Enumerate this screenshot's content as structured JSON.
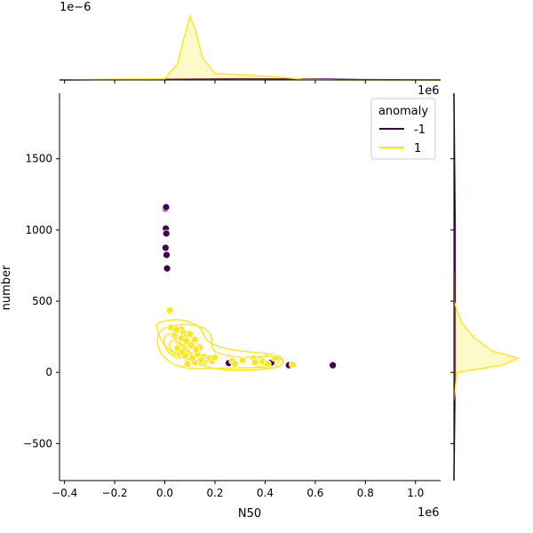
{
  "chart_data": {
    "type": "scatter",
    "title": "",
    "xlabel": "N50",
    "ylabel": "number",
    "x_offset_text": "1e6",
    "top_marginal_offset_text": "1e−6",
    "right_marginal_offset_text": "1e6",
    "xlim": [
      -0.42,
      1.1
    ],
    "ylim": [
      -760,
      1960
    ],
    "xticks": [
      -0.4,
      -0.2,
      0.0,
      0.2,
      0.4,
      0.6,
      0.8,
      1.0
    ],
    "xtick_labels": [
      "−0.4",
      "−0.2",
      "0.0",
      "0.2",
      "0.4",
      "0.6",
      "0.8",
      "1.0"
    ],
    "yticks": [
      -500,
      0,
      500,
      1000,
      1500
    ],
    "ytick_labels": [
      "−500",
      "0",
      "500",
      "1000",
      "1500"
    ],
    "grid": false,
    "legend": {
      "title": "anomaly",
      "placement": "upper right",
      "entries": [
        {
          "label": "-1",
          "color": "#440154"
        },
        {
          "label": "1",
          "color": "#fde725"
        }
      ]
    },
    "colors": {
      "anomaly_neg": "#440154",
      "anomaly_pos": "#fde725"
    },
    "series": [
      {
        "name": "-1",
        "color": "#440154",
        "x": [
          0.003,
          0.005,
          0.004,
          0.006,
          0.003,
          0.007,
          0.009,
          0.255,
          0.425,
          0.495,
          0.67
        ],
        "y": [
          1150,
          1160,
          1010,
          975,
          875,
          825,
          730,
          65,
          70,
          50,
          50
        ]
      },
      {
        "name": "1",
        "color": "#fde725",
        "x": [
          0.02,
          0.025,
          0.04,
          0.05,
          0.055,
          0.06,
          0.065,
          0.07,
          0.075,
          0.08,
          0.085,
          0.09,
          0.095,
          0.1,
          0.105,
          0.11,
          0.115,
          0.12,
          0.125,
          0.13,
          0.135,
          0.14,
          0.15,
          0.155,
          0.16,
          0.17,
          0.18,
          0.19,
          0.2,
          0.045,
          0.06,
          0.08,
          0.1,
          0.12,
          0.05,
          0.07,
          0.09,
          0.11,
          0.13,
          0.145,
          0.065,
          0.085,
          0.105,
          0.125,
          0.27,
          0.28,
          0.31,
          0.355,
          0.36,
          0.39,
          0.41,
          0.43,
          0.435,
          0.44,
          0.51
        ],
        "y": [
          435,
          315,
          260,
          230,
          210,
          195,
          305,
          180,
          275,
          160,
          250,
          140,
          205,
          270,
          120,
          185,
          105,
          230,
          150,
          95,
          125,
          175,
          85,
          110,
          75,
          90,
          100,
          80,
          105,
          300,
          130,
          115,
          90,
          70,
          170,
          145,
          60,
          100,
          130,
          85,
          240,
          220,
          190,
          160,
          80,
          60,
          85,
          100,
          70,
          75,
          60,
          115,
          105,
          100,
          55
        ]
      }
    ],
    "marginal_x_density": {
      "series": [
        {
          "name": "-1",
          "x": [
            -0.42,
            0.0,
            0.3,
            0.6,
            0.8,
            1.1
          ],
          "density": [
            0.0,
            0.01,
            0.02,
            0.015,
            0.005,
            0.0
          ]
        },
        {
          "name": "1",
          "x": [
            -0.42,
            0.0,
            0.05,
            0.08,
            0.1,
            0.12,
            0.15,
            0.2,
            0.3,
            0.4,
            0.45,
            0.55,
            0.7,
            1.1
          ],
          "density": [
            0.0,
            0.02,
            0.25,
            0.7,
            1.0,
            0.8,
            0.35,
            0.1,
            0.08,
            0.06,
            0.05,
            0.01,
            0.0,
            0.0
          ]
        }
      ]
    },
    "marginal_y_density": {
      "series": [
        {
          "name": "-1",
          "y": [
            -760,
            0,
            500,
            1000,
            1960
          ],
          "density": [
            0.0,
            0.02,
            0.02,
            0.02,
            0.0
          ]
        },
        {
          "name": "1",
          "y": [
            -200,
            0,
            50,
            100,
            150,
            250,
            350,
            500,
            700
          ],
          "density": [
            0.0,
            0.05,
            0.75,
            1.0,
            0.6,
            0.3,
            0.12,
            0.0,
            0.0
          ]
        }
      ]
    }
  }
}
